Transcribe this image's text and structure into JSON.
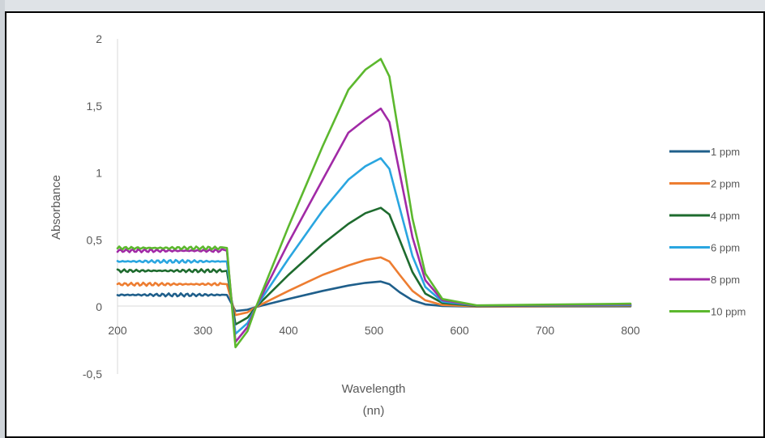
{
  "chart_data": {
    "type": "line",
    "xlabel": "Wavelength",
    "xlabel_unit": "(nn)",
    "ylabel": "Absorbance",
    "xlim": [
      200,
      800
    ],
    "ylim": [
      -0.5,
      2
    ],
    "xticks": [
      200,
      300,
      400,
      500,
      600,
      700,
      800
    ],
    "yticks": [
      2,
      1.5,
      1,
      0.5,
      0,
      -0.5
    ],
    "xtick_labels": [
      "200",
      "300",
      "400",
      "500",
      "600",
      "700",
      "800"
    ],
    "ytick_labels": [
      "2",
      "1,5",
      "1",
      "0,5",
      "0",
      "-0,5"
    ],
    "grid": false,
    "legend_position": "right",
    "series": [
      {
        "name": "1 ppm",
        "color": "#1f5f8b",
        "plateau": 0.09,
        "dip": -0.03,
        "points": [
          [
            328,
            0.09
          ],
          [
            338,
            -0.03
          ],
          [
            352,
            -0.02
          ],
          [
            362,
            0
          ],
          [
            400,
            0.06
          ],
          [
            440,
            0.12
          ],
          [
            470,
            0.16
          ],
          [
            490,
            0.18
          ],
          [
            508,
            0.19
          ],
          [
            518,
            0.17
          ],
          [
            530,
            0.11
          ],
          [
            545,
            0.05
          ],
          [
            560,
            0.02
          ],
          [
            580,
            0.008
          ],
          [
            620,
            0.003
          ],
          [
            800,
            0.005
          ]
        ]
      },
      {
        "name": "2 ppm",
        "color": "#ed7d31",
        "plateau": 0.17,
        "dip": -0.06,
        "points": [
          [
            328,
            0.17
          ],
          [
            338,
            -0.06
          ],
          [
            352,
            -0.04
          ],
          [
            362,
            0
          ],
          [
            400,
            0.12
          ],
          [
            440,
            0.24
          ],
          [
            470,
            0.31
          ],
          [
            490,
            0.35
          ],
          [
            508,
            0.37
          ],
          [
            518,
            0.34
          ],
          [
            530,
            0.24
          ],
          [
            545,
            0.12
          ],
          [
            560,
            0.05
          ],
          [
            580,
            0.015
          ],
          [
            620,
            0.005
          ],
          [
            800,
            0.008
          ]
        ]
      },
      {
        "name": "4 ppm",
        "color": "#1e6b2e",
        "plateau": 0.27,
        "dip": -0.13,
        "points": [
          [
            328,
            0.27
          ],
          [
            338,
            -0.13
          ],
          [
            352,
            -0.08
          ],
          [
            362,
            0
          ],
          [
            400,
            0.24
          ],
          [
            440,
            0.47
          ],
          [
            470,
            0.62
          ],
          [
            490,
            0.7
          ],
          [
            508,
            0.74
          ],
          [
            518,
            0.69
          ],
          [
            530,
            0.5
          ],
          [
            545,
            0.26
          ],
          [
            560,
            0.1
          ],
          [
            580,
            0.03
          ],
          [
            620,
            0.008
          ],
          [
            800,
            0.012
          ]
        ]
      },
      {
        "name": "6 ppm",
        "color": "#2aa6e0",
        "plateau": 0.34,
        "dip": -0.2,
        "points": [
          [
            328,
            0.34
          ],
          [
            338,
            -0.2
          ],
          [
            352,
            -0.12
          ],
          [
            362,
            0
          ],
          [
            400,
            0.36
          ],
          [
            440,
            0.72
          ],
          [
            470,
            0.95
          ],
          [
            490,
            1.05
          ],
          [
            508,
            1.11
          ],
          [
            518,
            1.03
          ],
          [
            530,
            0.74
          ],
          [
            545,
            0.38
          ],
          [
            560,
            0.15
          ],
          [
            580,
            0.04
          ],
          [
            620,
            0.01
          ],
          [
            800,
            0.015
          ]
        ]
      },
      {
        "name": "8 ppm",
        "color": "#a12aa6",
        "plateau": 0.42,
        "dip": -0.26,
        "points": [
          [
            328,
            0.42
          ],
          [
            338,
            -0.26
          ],
          [
            352,
            -0.15
          ],
          [
            362,
            0
          ],
          [
            400,
            0.48
          ],
          [
            440,
            0.95
          ],
          [
            470,
            1.3
          ],
          [
            490,
            1.4
          ],
          [
            508,
            1.48
          ],
          [
            518,
            1.38
          ],
          [
            530,
            1.0
          ],
          [
            545,
            0.52
          ],
          [
            560,
            0.2
          ],
          [
            580,
            0.05
          ],
          [
            620,
            0.01
          ],
          [
            800,
            0.02
          ]
        ]
      },
      {
        "name": "10 ppm",
        "color": "#5cb82e",
        "plateau": 0.44,
        "dip": -0.3,
        "points": [
          [
            328,
            0.44
          ],
          [
            338,
            -0.3
          ],
          [
            352,
            -0.18
          ],
          [
            362,
            0
          ],
          [
            400,
            0.6
          ],
          [
            440,
            1.2
          ],
          [
            470,
            1.62
          ],
          [
            490,
            1.77
          ],
          [
            508,
            1.85
          ],
          [
            518,
            1.72
          ],
          [
            530,
            1.25
          ],
          [
            545,
            0.66
          ],
          [
            560,
            0.25
          ],
          [
            580,
            0.06
          ],
          [
            620,
            0.012
          ],
          [
            800,
            0.025
          ]
        ]
      }
    ]
  }
}
